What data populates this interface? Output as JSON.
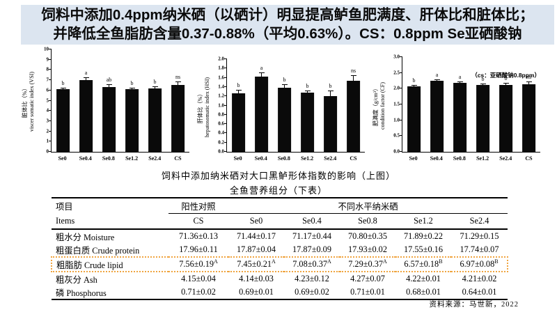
{
  "header": {
    "line1": "饲料中添加0.4ppm纳米硒（以硒计）明显提高鲈鱼肥满度、肝体比和脏体比；",
    "line2": "并降低全鱼脂肪含量0.37-0.88%（平均0.63%）。CS：0.8ppm Se亚硒酸钠",
    "bg_color": "#dce5f0"
  },
  "captions": {
    "charts_caption": "饲料中添加纳米硒对大口黑鲈形体指数的影响（上图）",
    "table_caption": "全鱼营养组分（下表）"
  },
  "chart_data": [
    {
      "type": "bar",
      "name": "viscerosomatic-index",
      "ylabel_cn": "脏体比（%）",
      "ylabel_en": "viscer somatic index (VSI)",
      "categories": [
        "Se0",
        "Se0.4",
        "Se0.8",
        "Se1.2",
        "Se2.4",
        "CS"
      ],
      "values": [
        6.1,
        7.0,
        6.35,
        6.1,
        6.2,
        6.55
      ],
      "errors": [
        0.15,
        0.3,
        0.25,
        0.15,
        0.2,
        0.3
      ],
      "sig_labels": [
        "b",
        "a",
        "ab",
        "b",
        "b",
        "ns"
      ],
      "ylim": [
        0,
        10
      ],
      "ytick_step": 1,
      "ytick_decimals": 0,
      "bar_color": "#0a0a0a",
      "grid": false,
      "legend": false
    },
    {
      "type": "bar",
      "name": "hepatosomatic-index",
      "ylabel_cn": "肝体比（%）",
      "ylabel_en": "hepatosomatic index (HSI)",
      "categories": [
        "Se0",
        "Se0.4",
        "Se0.8",
        "Se1.2",
        "Se2.4",
        "CS"
      ],
      "values": [
        1.27,
        1.63,
        1.39,
        1.28,
        1.21,
        1.54
      ],
      "errors": [
        0.07,
        0.08,
        0.07,
        0.05,
        0.11,
        0.11
      ],
      "sig_labels": [
        "b",
        "a",
        "b",
        "b",
        "b",
        "ns"
      ],
      "ylim": [
        0,
        2.0
      ],
      "ytick_step": 0.2,
      "ytick_decimals": 1,
      "bar_color": "#0a0a0a",
      "grid": false,
      "legend": false
    },
    {
      "type": "bar",
      "name": "condition-factor",
      "ylabel_cn": "肥满度（g/cm³）",
      "ylabel_en": "condition factor (CF)",
      "categories": [
        "Se0",
        "Se0.4",
        "Se0.8",
        "Se1.2",
        "Se2.4",
        "CS"
      ],
      "values": [
        2.07,
        2.25,
        2.19,
        2.11,
        2.12,
        2.15
      ],
      "errors": [
        0.04,
        0.04,
        0.04,
        0.05,
        0.06,
        0.08
      ],
      "sig_labels": [
        "b",
        "a",
        "a",
        "b",
        "b",
        "ns"
      ],
      "ylim": [
        0,
        3.0
      ],
      "ytick_step": 0.5,
      "ytick_decimals": 1,
      "annotation": "（cs：亚硒酸钠0.8ppm）",
      "bar_color": "#0a0a0a",
      "grid": false,
      "legend": false
    }
  ],
  "table": {
    "col_item_cn": "项目",
    "col_item_en": "Items",
    "group_control": "阳性对照",
    "group_nano": "不同水平纳米硒",
    "columns": [
      "CS",
      "Se0",
      "Se0.4",
      "Se0.8",
      "Se1.2",
      "Se2.4"
    ],
    "rows": [
      {
        "label": "粗水分 Moisture",
        "values": [
          "71.36±0.13",
          "71.44±0.17",
          "71.17±0.44",
          "70.80±0.35",
          "71.89±0.22",
          "71.29±0.15"
        ],
        "highlight": false
      },
      {
        "label": "粗蛋白质 Crude protein",
        "values": [
          "17.96±0.11",
          "17.87±0.04",
          "17.87±0.09",
          "17.93±0.02",
          "17.55±0.16",
          "17.74±0.07"
        ],
        "highlight": false
      },
      {
        "label": "粗脂肪 Crude lipid",
        "values": [
          "7.56±0.19^A",
          "7.45±0.21^A",
          "7.08±0.37^A",
          "7.29±0.37^A",
          "6.57±0.18^B",
          "6.97±0.08^B"
        ],
        "highlight": true
      },
      {
        "label": "粗灰分 Ash",
        "values": [
          "4.15±0.04",
          "4.14±0.03",
          "4.23±0.12",
          "4.27±0.07",
          "4.22±0.01",
          "4.21±0.02"
        ],
        "highlight": false
      },
      {
        "label": "磷 Phosphorus",
        "values": [
          "0.71±0.02",
          "0.69±0.01",
          "0.69±0.02",
          "0.71±0.01",
          "0.68±0.01",
          "0.64±0.01"
        ],
        "highlight": false
      }
    ],
    "highlight_color": "#f0a43f"
  },
  "source": {
    "text": "资料来源：马世新，2022"
  }
}
